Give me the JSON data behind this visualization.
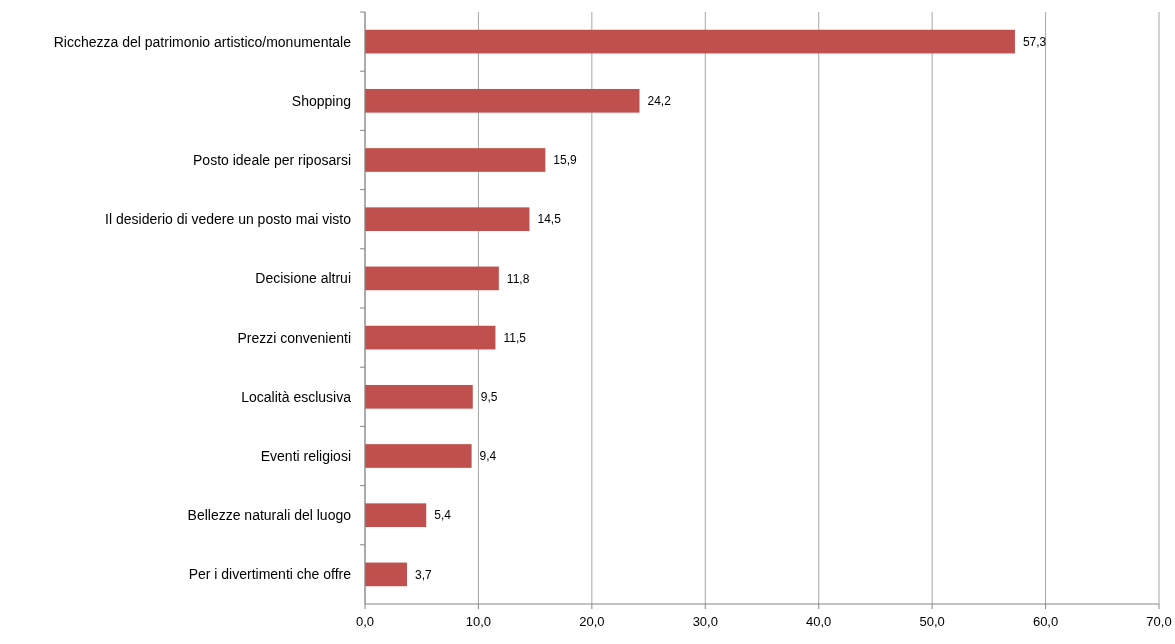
{
  "chart_data": {
    "type": "bar",
    "orientation": "horizontal",
    "categories": [
      "Ricchezza del patrimonio artistico/monumentale",
      "Shopping",
      "Posto ideale per riposarsi",
      "Il desiderio di vedere un posto mai visto",
      "Decisione altrui",
      "Prezzi convenienti",
      "Località esclusiva",
      "Eventi religiosi",
      "Bellezze naturali del luogo",
      "Per i divertimenti che offre"
    ],
    "values": [
      57.3,
      24.2,
      15.9,
      14.5,
      11.8,
      11.5,
      9.5,
      9.4,
      5.4,
      3.7
    ],
    "value_labels": [
      "57,3",
      "24,2",
      "15,9",
      "14,5",
      "11,8",
      "11,5",
      "9,5",
      "9,4",
      "5,4",
      "3,7"
    ],
    "color": "#c0504d",
    "xlim": [
      0,
      70
    ],
    "xticks": [
      {
        "value": 0,
        "label": "0,0"
      },
      {
        "value": 10,
        "label": "10,0"
      },
      {
        "value": 20,
        "label": "20,0"
      },
      {
        "value": 30,
        "label": "30,0"
      },
      {
        "value": 40,
        "label": "40,0"
      },
      {
        "value": 50,
        "label": "50,0"
      },
      {
        "value": 60,
        "label": "60,0"
      },
      {
        "value": 70,
        "label": "70,0"
      }
    ],
    "grid": "x"
  }
}
